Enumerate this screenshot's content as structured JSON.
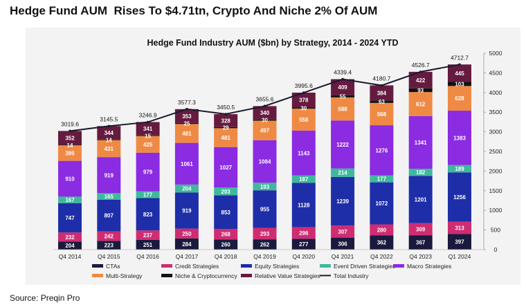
{
  "headline": "Hedge Fund AUM  Rises To $4.71tn, Crypto And Niche 2% Of AUM",
  "source": "Source: Preqin Pro",
  "chart_data": {
    "type": "bar",
    "stacked": true,
    "title": "Hedge Fund Industry AUM ($bn) by Strategy, 2014 - 2024 YTD",
    "categories": [
      "Q4 2014",
      "Q4 2015",
      "Q4 2016",
      "Q4 2017",
      "Q4 2018",
      "Q4 2019",
      "Q4 2020",
      "Q4 2021",
      "Q4 2022",
      "Q4 2023",
      "Q1 2024"
    ],
    "y_axis": {
      "position": "right",
      "ylim": [
        0,
        5000
      ],
      "ticks": [
        "0",
        "500",
        "1000",
        "1500",
        "2000",
        "2500",
        "3000",
        "3500",
        "4000",
        "4500",
        "5000"
      ]
    },
    "grid": false,
    "legend_position": "bottom",
    "series": [
      {
        "name": "CTAs",
        "color": "#1a1a3e",
        "values": [
          204,
          223,
          251,
          284,
          260,
          262,
          277,
          306,
          362,
          367,
          397
        ]
      },
      {
        "name": "Credit Strategies",
        "color": "#cf2c72",
        "values": [
          232,
          242,
          237,
          250,
          268,
          293,
          296,
          307,
          280,
          309,
          313
        ]
      },
      {
        "name": "Equity Strategies",
        "color": "#1e2ea8",
        "values": [
          747,
          807,
          823,
          919,
          853,
          955,
          1128,
          1239,
          1072,
          1201,
          1256
        ]
      },
      {
        "name": "Event Driven Strategies",
        "color": "#3fb89c",
        "values": [
          167,
          165,
          177,
          204,
          203,
          193,
          187,
          214,
          177,
          182,
          189
        ]
      },
      {
        "name": "Macro Strategies",
        "color": "#8b2be2",
        "values": [
          910,
          919,
          979,
          1061,
          1027,
          1084,
          1143,
          1222,
          1276,
          1341,
          1383
        ]
      },
      {
        "name": "Multi-Strategy",
        "color": "#ef8a45",
        "values": [
          395,
          431,
          425,
          481,
          481,
          497,
          558,
          588,
          568,
          612,
          628
        ]
      },
      {
        "name": "Niche & Cryptocurrency",
        "color": "#111111",
        "values": [
          14,
          14,
          15,
          25,
          29,
          30,
          30,
          55,
          63,
          93,
          103
        ]
      },
      {
        "name": "Relative Value Strategies",
        "color": "#651b3f",
        "values": [
          352,
          344,
          341,
          353,
          328,
          340,
          378,
          409,
          384,
          422,
          445
        ]
      }
    ],
    "total": {
      "name": "Total Industry",
      "color": "#1a1a2e",
      "values": [
        3019.6,
        3145.5,
        3246.9,
        3577.3,
        3450.5,
        3655.6,
        3995.6,
        4339.4,
        4180.7,
        4526.7,
        4712.7
      ],
      "labels": [
        "3019.6",
        "3145.5",
        "3246.9",
        "3577.3",
        "3450.5",
        "3655.6",
        "3995.6",
        "4339.4",
        "4180.7",
        "4526.7",
        "4712.7"
      ]
    }
  }
}
